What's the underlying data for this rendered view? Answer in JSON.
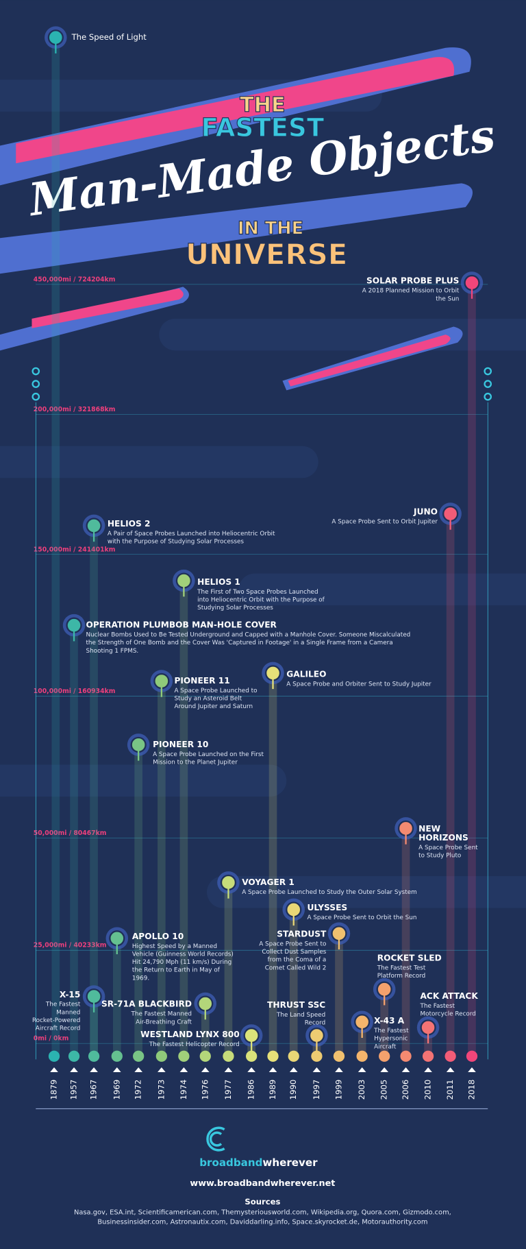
{
  "header": {
    "line1": "THE",
    "line2": "FASTEST",
    "line3": "Man-Made Objects",
    "line4": "IN THE",
    "line5": "UNIVERSE"
  },
  "speed_of_light": "The Speed of Light",
  "scale": [
    "450,000mi / 724204km",
    "200,000mi / 321868km",
    "150,000mi / 241401km",
    "100,000mi / 160934km",
    "50,000mi / 80467km",
    "25,000mi / 40233km",
    "0mi / 0km"
  ],
  "years": [
    "1879",
    "1957",
    "1967",
    "1969",
    "1972",
    "1973",
    "1974",
    "1976",
    "1977",
    "1986",
    "1989",
    "1990",
    "1997",
    "1999",
    "2003",
    "2005",
    "2006",
    "2010",
    "2011",
    "2018"
  ],
  "objects": [
    {
      "title": [
        "SOLAR PROBE PLUS"
      ],
      "description": [
        "A 2018 Planned Mission to Orbit",
        "the Sun"
      ]
    },
    {
      "title": [
        "JUNO"
      ],
      "description": [
        "A Space Probe Sent to Orbit Jupiter"
      ]
    },
    {
      "title": [
        "HELIOS 2"
      ],
      "description": [
        "A Pair of Space Probes Launched into Heliocentric Orbit",
        "with the Purpose of Studying Solar Processes"
      ]
    },
    {
      "title": [
        "HELIOS 1"
      ],
      "description": [
        "The First of Two Space Probes Launched",
        "into Heliocentric Orbit with the Purpose of",
        "Studying Solar Processes"
      ]
    },
    {
      "title": [
        "OPERATION PLUMBOB MAN-HOLE COVER"
      ],
      "description": [
        "Nuclear Bombs Used to Be Tested Underground and Capped with a Manhole Cover. Someone Miscalculated",
        "the Strength of One Bomb and the Cover Was 'Captured in Footage' in a Single Frame from a Camera",
        "Shooting 1 FPMS."
      ]
    },
    {
      "title": [
        "GALILEO"
      ],
      "description": [
        "A Space Probe and Orbiter Sent to Study Jupiter"
      ]
    },
    {
      "title": [
        "PIONEER 11"
      ],
      "description": [
        "A Space Probe Launched to",
        "Study an Asteroid Belt",
        "Around Jupiter and Saturn"
      ]
    },
    {
      "title": [
        "PIONEER 10"
      ],
      "description": [
        "A Space Probe Launched on the First",
        "Mission to the Planet Jupiter"
      ]
    },
    {
      "title": [
        "NEW",
        "HORIZONS"
      ],
      "description": [
        "A Space Probe Sent",
        "to Study Pluto"
      ]
    },
    {
      "title": [
        "VOYAGER 1"
      ],
      "description": [
        "A Space Probe Launched to Study the Outer Solar System"
      ]
    },
    {
      "title": [
        "ULYSSES"
      ],
      "description": [
        "A Space Probe Sent to Orbit the Sun"
      ]
    },
    {
      "title": [
        "STARDUST"
      ],
      "description": [
        "A Space Probe Sent to",
        "Collect Dust Samples",
        "from the Coma of a",
        "Comet Called Wild 2"
      ]
    },
    {
      "title": [
        "APOLLO 10"
      ],
      "description": [
        "Highest Speed by a Manned",
        "Vehicle (Guinness World Records)",
        "Hit 24,790 Mph (11 km/s) During",
        "the Return to Earth in May of",
        "1969."
      ]
    },
    {
      "title": [
        "ROCKET SLED"
      ],
      "description": [
        "The Fastest Test",
        "Platform Record"
      ]
    },
    {
      "title": [
        "X-15"
      ],
      "description": [
        "The Fastest",
        "Manned",
        "Rocket-Powered",
        "Aircraft Record"
      ]
    },
    {
      "title": [
        "SR-71A BLACKBIRD"
      ],
      "description": [
        "The Fastest Manned",
        "Air-Breathing Craft"
      ]
    },
    {
      "title": [
        "ACK ATTACK"
      ],
      "description": [
        "The Fastest",
        "Motorcycle Record"
      ]
    },
    {
      "title": [
        "THRUST SSC"
      ],
      "description": [
        "The Land Speed",
        "Record"
      ]
    },
    {
      "title": [
        "X-43 A"
      ],
      "description": [
        "The Fastest",
        "Hypersonic",
        "Aircraft"
      ]
    },
    {
      "title": [
        "WESTLAND LYNX 800"
      ],
      "description": [
        "The Fastest Helicopter Record"
      ]
    }
  ],
  "footer": {
    "logo_part1": "broadband",
    "logo_part2": "wherever",
    "url": "www.broadbandwherever.net",
    "sources_title": "Sources",
    "sources": [
      "Nasa.gov, ESA.int, Scientificamerican.com, Themysteriousworld.com, Wikipedia.org, Quora.com, Gizmodo.com,",
      "Businessinsider.com, Astronautix.com, Daviddarling.info, Space.skyrocket.de, Motorauthority.com"
    ]
  }
}
